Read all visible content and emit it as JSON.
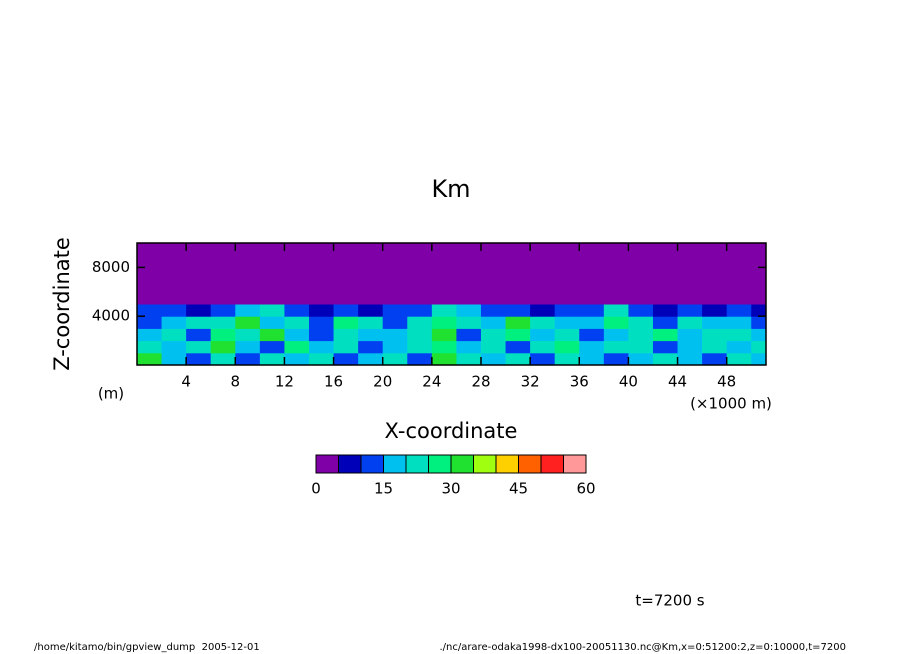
{
  "chart_data": {
    "type": "contour",
    "title": "Km",
    "xlabel": "X-coordinate",
    "ylabel": "Z-coordinate",
    "y_unit_label": "(m)",
    "x_unit_label": "(×1000 m)",
    "xlim": [
      0,
      51.2
    ],
    "xticks": [
      4,
      8,
      12,
      16,
      20,
      24,
      28,
      32,
      36,
      40,
      44,
      48
    ],
    "ylim": [
      0,
      10000
    ],
    "yticks": [
      4000,
      8000
    ],
    "x_edges": [
      0,
      2,
      4,
      6,
      8,
      10,
      12,
      14,
      16,
      18,
      20,
      22,
      24,
      26,
      28,
      30,
      32,
      34,
      36,
      38,
      40,
      42,
      44,
      46,
      48,
      50,
      51.2
    ],
    "z_edges": [
      0,
      1000,
      2000,
      3000,
      4000,
      5000,
      10000
    ],
    "values": [
      [
        32,
        18,
        14,
        22,
        12,
        20,
        16,
        24,
        14,
        18,
        22,
        12,
        30,
        20,
        16,
        22,
        14,
        20,
        18,
        12,
        16,
        22,
        18,
        14,
        20,
        18
      ],
      [
        22,
        16,
        20,
        30,
        18,
        14,
        26,
        16,
        22,
        12,
        18,
        24,
        28,
        16,
        20,
        14,
        22,
        26,
        16,
        20,
        24,
        14,
        18,
        22,
        16,
        20
      ],
      [
        18,
        22,
        14,
        28,
        20,
        30,
        16,
        14,
        24,
        18,
        16,
        22,
        30,
        14,
        22,
        26,
        16,
        20,
        14,
        18,
        22,
        26,
        16,
        20,
        24,
        18
      ],
      [
        14,
        18,
        22,
        24,
        30,
        16,
        20,
        12,
        26,
        22,
        14,
        20,
        28,
        24,
        18,
        30,
        22,
        18,
        16,
        26,
        20,
        14,
        22,
        16,
        18,
        14
      ],
      [
        10,
        12,
        8,
        14,
        18,
        22,
        12,
        8,
        10,
        6,
        12,
        10,
        20,
        18,
        10,
        14,
        8,
        12,
        14,
        22,
        10,
        8,
        12,
        6,
        10,
        8
      ],
      [
        2,
        2,
        2,
        2,
        2,
        2,
        2,
        2,
        2,
        2,
        2,
        2,
        2,
        2,
        2,
        2,
        2,
        2,
        2,
        2,
        2,
        2,
        2,
        2,
        2,
        2
      ]
    ],
    "levels": [
      0,
      5,
      10,
      15,
      20,
      25,
      30,
      35,
      40,
      45,
      50,
      55,
      60
    ],
    "colors": [
      "#8000a8",
      "#0000b8",
      "#0040f0",
      "#00c0f0",
      "#00e0c0",
      "#00f080",
      "#20e030",
      "#a0ff10",
      "#ffd000",
      "#ff6000",
      "#ff2020",
      "#ff9898"
    ],
    "colorbar_ticks": [
      0,
      15,
      30,
      45,
      60
    ],
    "time_label": "t=7200 s",
    "footer_left": "/home/kitamo/bin/gpview_dump  2005-12-01",
    "footer_right": "./nc/arare-odaka1998-dx100-20051130.nc@Km,x=0:51200:2,z=0:10000,t=7200"
  }
}
